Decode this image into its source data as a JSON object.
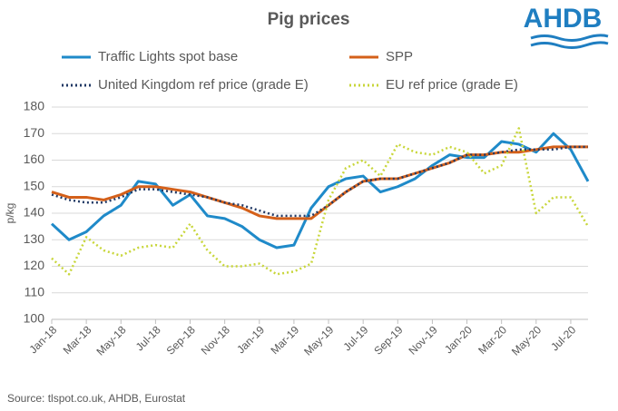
{
  "chart_data": {
    "type": "line",
    "title": "Pig prices",
    "logo": "AHDB",
    "source": "Source:  tlspot.co.uk, AHDB, Eurostat",
    "y_label": "p/kg",
    "categories": [
      "Jan-18",
      null,
      "Mar-18",
      null,
      "May-18",
      null,
      "Jul-18",
      null,
      "Sep-18",
      null,
      "Nov-18",
      null,
      "Jan-19",
      null,
      "Mar-19",
      null,
      "May-19",
      null,
      "Jul-19",
      null,
      "Sep-19",
      null,
      "Nov-19",
      null,
      "Jan-20",
      null,
      "Mar-20",
      null,
      "May-20",
      null,
      "Jul-20",
      null
    ],
    "ylim": [
      100,
      180
    ],
    "yticks": [
      100,
      110,
      120,
      130,
      140,
      150,
      160,
      170,
      180
    ],
    "grid": true,
    "series": [
      {
        "name": "Traffic Lights spot base",
        "color": "#1f8ac9",
        "style": "solid",
        "values": [
          136,
          130,
          133,
          139,
          143,
          152,
          151,
          143,
          147,
          139,
          138,
          135,
          130,
          127,
          128,
          142,
          150,
          153,
          154,
          148,
          150,
          153,
          158,
          162,
          161,
          161,
          167,
          166,
          163,
          170,
          164,
          152
        ]
      },
      {
        "name": "SPP",
        "color": "#d4601a",
        "style": "solid",
        "values": [
          148,
          146,
          146,
          145,
          147,
          150,
          150,
          149,
          148,
          146,
          144,
          142,
          139,
          138,
          138,
          138,
          143,
          148,
          152,
          153,
          153,
          155,
          157,
          159,
          162,
          162,
          163,
          163,
          164,
          165,
          165,
          165
        ]
      },
      {
        "name": "United Kingdom ref price (grade E)",
        "color": "#203864",
        "style": "dotted",
        "values": [
          147,
          145,
          144,
          144,
          146,
          149,
          149,
          148,
          147,
          146,
          144,
          143,
          141,
          139,
          139,
          139,
          143,
          148,
          152,
          153,
          153,
          155,
          157,
          159,
          162,
          162,
          163,
          164,
          164,
          164,
          165,
          165
        ]
      },
      {
        "name": "EU ref price (grade E)",
        "color": "#c8d63a",
        "style": "dotted",
        "values": [
          123,
          117,
          131,
          126,
          124,
          127,
          128,
          127,
          136,
          126,
          120,
          120,
          121,
          117,
          118,
          121,
          145,
          157,
          160,
          154,
          166,
          163,
          162,
          165,
          163,
          155,
          158,
          172,
          140,
          146,
          146,
          135
        ]
      }
    ]
  }
}
